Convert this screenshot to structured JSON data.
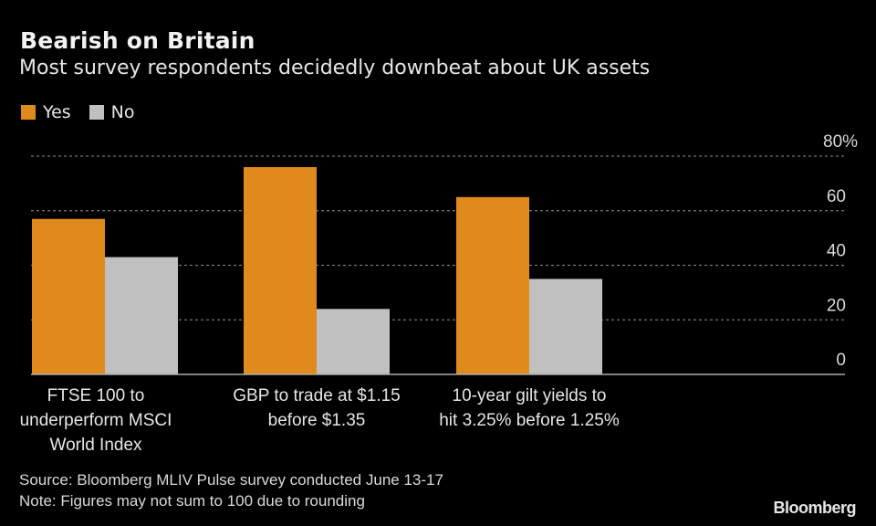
{
  "header": {
    "title": "Bearish on Britain",
    "subtitle": "Most survey respondents decidedly downbeat about UK assets"
  },
  "legend": [
    {
      "label": "Yes",
      "color": "#e08a1e"
    },
    {
      "label": "No",
      "color": "#c0c0c0"
    }
  ],
  "chart_data": {
    "type": "bar",
    "title": "Bearish on Britain",
    "subtitle": "Most survey respondents decidedly downbeat about UK assets",
    "categories": [
      "FTSE 100 to underperform MSCI World Index",
      "GBP to trade at $1.15 before $1.35",
      "10-year gilt yields to hit 3.25% before 1.25%"
    ],
    "category_lines": [
      [
        "FTSE 100 to",
        "underperform MSCI",
        "World Index"
      ],
      [
        "GBP to trade at $1.15",
        "before $1.35"
      ],
      [
        "10-year gilt yields to",
        "hit 3.25% before 1.25%"
      ]
    ],
    "series": [
      {
        "name": "Yes",
        "color": "#e08a1e",
        "values": [
          57,
          76,
          65
        ]
      },
      {
        "name": "No",
        "color": "#c0c0c0",
        "values": [
          43,
          24,
          35
        ]
      }
    ],
    "xlabel": "",
    "ylabel": "",
    "ylim": [
      0,
      80
    ],
    "yticks": [
      0,
      20,
      40,
      60,
      80
    ],
    "ytick_labels": [
      "0",
      "20",
      "40",
      "60",
      "80%"
    ],
    "grid": true,
    "legend_position": "top-left",
    "y_axis_side": "right"
  },
  "footer": {
    "source": "Source: Bloomberg MLIV Pulse survey conducted June 13-17",
    "note": "Note: Figures may not sum to 100 due to rounding",
    "brand": "Bloomberg"
  }
}
